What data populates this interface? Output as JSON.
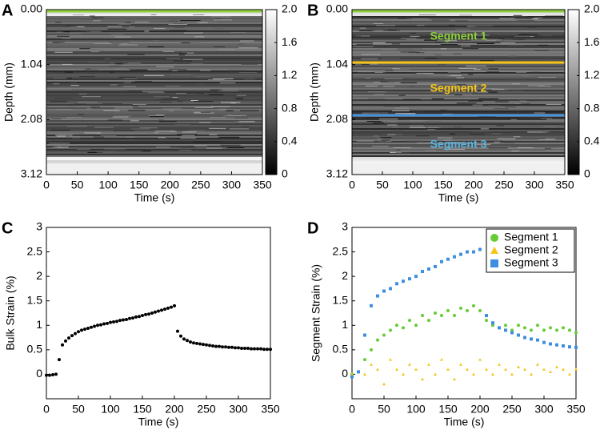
{
  "chart_data": [
    {
      "type": "heatmap",
      "panel": "A",
      "xlabel": "Time (s)",
      "ylabel": "Depth (mm)",
      "xlim": [
        0,
        350
      ],
      "xticks": [
        0,
        50,
        100,
        150,
        200,
        250,
        300,
        350
      ],
      "ylim": [
        0,
        3.12
      ],
      "y_inverted": true,
      "yticks": [
        {
          "value": 0,
          "label": "0.00"
        },
        1.04,
        2.08,
        3.12
      ],
      "colorbar": {
        "lim": [
          0,
          2
        ],
        "ticks": [
          0,
          0.4,
          0.8,
          1.2,
          1.6,
          {
            "value": 2,
            "label": "2.0"
          }
        ]
      },
      "boundaries": [
        {
          "color": "#8fd13f",
          "depth": 0.03
        }
      ],
      "annotations": []
    },
    {
      "type": "heatmap",
      "panel": "B",
      "xlabel": "Time (s)",
      "ylabel": "Depth (mm)",
      "xlim": [
        0,
        350
      ],
      "xticks": [
        0,
        50,
        100,
        150,
        200,
        250,
        300,
        350
      ],
      "ylim": [
        0,
        3.12
      ],
      "y_inverted": true,
      "yticks": [
        {
          "value": 0,
          "label": "0.00"
        },
        1.04,
        2.08,
        3.12
      ],
      "colorbar": {
        "lim": [
          0,
          2
        ],
        "ticks": [
          0,
          0.4,
          0.8,
          1.2,
          1.6,
          {
            "value": 2,
            "label": "2.0"
          }
        ]
      },
      "boundaries": [
        {
          "color": "#8fd13f",
          "depth": 0.03
        },
        {
          "color": "#f5c518",
          "depth": 1.0
        },
        {
          "color": "#4a90d9",
          "depth": 2.0
        }
      ],
      "annotations": [
        {
          "text": "Segment 1",
          "color": "#8fd13f"
        },
        {
          "text": "Segment 2",
          "color": "#f5c518"
        },
        {
          "text": "Segment 3",
          "color": "#5ab4e0"
        }
      ]
    },
    {
      "type": "scatter",
      "panel": "C",
      "xlabel": "Time (s)",
      "ylabel": "Bulk Strain (%)",
      "xlim": [
        0,
        350
      ],
      "xticks": [
        0,
        50,
        100,
        150,
        200,
        250,
        300,
        350
      ],
      "ylim": [
        -0.5,
        3
      ],
      "yticks": [
        0,
        0.5,
        1,
        1.5,
        2,
        2.5,
        3
      ],
      "color": "#000000",
      "x": [
        0,
        5,
        10,
        15,
        20,
        25,
        30,
        35,
        40,
        45,
        50,
        55,
        60,
        65,
        70,
        75,
        80,
        85,
        90,
        95,
        100,
        105,
        110,
        115,
        120,
        125,
        130,
        135,
        140,
        145,
        150,
        155,
        160,
        165,
        170,
        175,
        180,
        185,
        190,
        195,
        200,
        205,
        210,
        215,
        220,
        225,
        230,
        235,
        240,
        245,
        250,
        255,
        260,
        265,
        270,
        275,
        280,
        285,
        290,
        295,
        300,
        305,
        310,
        315,
        320,
        325,
        330,
        335,
        340,
        345,
        350
      ],
      "values": [
        -0.02,
        -0.02,
        -0.01,
        0.0,
        0.3,
        0.6,
        0.68,
        0.74,
        0.79,
        0.83,
        0.87,
        0.9,
        0.92,
        0.94,
        0.96,
        0.98,
        1.0,
        1.01,
        1.03,
        1.04,
        1.06,
        1.07,
        1.08,
        1.1,
        1.11,
        1.12,
        1.14,
        1.15,
        1.17,
        1.18,
        1.2,
        1.22,
        1.23,
        1.25,
        1.27,
        1.29,
        1.31,
        1.33,
        1.35,
        1.37,
        1.4,
        0.88,
        0.78,
        0.72,
        0.69,
        0.66,
        0.64,
        0.63,
        0.62,
        0.61,
        0.6,
        0.59,
        0.58,
        0.57,
        0.57,
        0.56,
        0.56,
        0.55,
        0.55,
        0.54,
        0.54,
        0.53,
        0.53,
        0.53,
        0.52,
        0.52,
        0.52,
        0.52,
        0.51,
        0.51,
        0.51
      ]
    },
    {
      "type": "scatter",
      "panel": "D",
      "xlabel": "Time (s)",
      "ylabel": "Segment Strain (%)",
      "xlim": [
        0,
        350
      ],
      "xticks": [
        0,
        50,
        100,
        150,
        200,
        250,
        300,
        350
      ],
      "ylim": [
        -0.5,
        3
      ],
      "yticks": [
        0,
        0.5,
        1,
        1.5,
        2,
        2.5,
        3
      ],
      "legend": "top-right",
      "x": [
        0,
        10,
        20,
        30,
        40,
        50,
        60,
        70,
        80,
        90,
        100,
        110,
        120,
        130,
        140,
        150,
        160,
        170,
        180,
        190,
        200,
        210,
        220,
        230,
        240,
        250,
        260,
        270,
        280,
        290,
        300,
        310,
        320,
        330,
        340,
        350
      ],
      "series": [
        {
          "name": "Segment 1",
          "color": "#66cc33",
          "marker": "circle",
          "values": [
            0,
            0.05,
            0.3,
            0.5,
            0.7,
            0.8,
            0.9,
            1.0,
            0.95,
            1.1,
            1.0,
            1.2,
            1.1,
            1.25,
            1.2,
            1.3,
            1.2,
            1.35,
            1.3,
            1.4,
            1.3,
            1.1,
            1.0,
            0.95,
            1.0,
            0.9,
            1.0,
            0.95,
            0.9,
            1.0,
            0.9,
            0.95,
            0.9,
            0.95,
            0.9,
            0.85
          ]
        },
        {
          "name": "Segment 2",
          "color": "#f5c518",
          "marker": "triangle",
          "values": [
            0,
            0.05,
            0,
            0.2,
            0.1,
            -0.2,
            0.3,
            0.1,
            0.0,
            0.2,
            0.1,
            -0.1,
            0.2,
            0.0,
            0.3,
            0.1,
            -0.1,
            0.2,
            0.1,
            0.0,
            0.3,
            0.1,
            0.0,
            0.2,
            0.1,
            0.0,
            0.15,
            0.1,
            0.0,
            0.2,
            0.1,
            0.05,
            0.15,
            0.1,
            0.0,
            0.1
          ]
        },
        {
          "name": "Segment 3",
          "color": "#3f8fe0",
          "marker": "square",
          "values": [
            -0.05,
            0.05,
            0.8,
            1.4,
            1.6,
            1.7,
            1.75,
            1.85,
            1.9,
            1.95,
            2.0,
            2.1,
            2.15,
            2.2,
            2.3,
            2.35,
            2.4,
            2.45,
            2.5,
            2.5,
            2.55,
            1.2,
            1.05,
            0.95,
            0.9,
            0.85,
            0.8,
            0.75,
            0.72,
            0.7,
            0.65,
            0.62,
            0.6,
            0.58,
            0.56,
            0.55
          ]
        }
      ]
    }
  ]
}
